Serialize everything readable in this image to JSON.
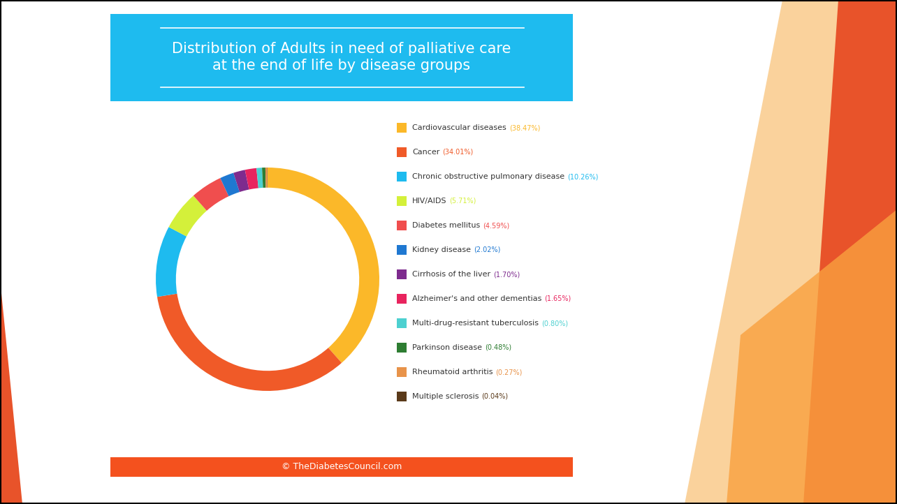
{
  "chart_data": {
    "type": "donut",
    "title": "Distribution of Adults in need of palliative care\nat the end of life by disease groups",
    "categories": [
      "Cardiovascular diseases",
      "Cancer",
      "Chronic obstructive pulmonary disease",
      "HIV/AIDS",
      "Diabetes mellitus",
      "Kidney disease",
      "Cirrhosis of the liver",
      "Alzheimer's and other dementias",
      "Multi-drug-resistant tuberculosis",
      "Parkinson disease",
      "Rheumatoid arthritis",
      "Multiple sclerosis"
    ],
    "values": [
      38.47,
      34.01,
      10.26,
      5.71,
      4.59,
      2.02,
      1.7,
      1.65,
      0.8,
      0.48,
      0.27,
      0.04
    ],
    "value_labels": [
      "(38.47%)",
      "(34.01%)",
      "(10.26%)",
      "(5.71%)",
      "(4.59%)",
      "(2.02%)",
      "(1.70%)",
      "(1.65%)",
      "(0.80%)",
      "(0.48%)",
      "(0.27%)",
      "(0.04%)"
    ],
    "colors": [
      "#FBB829",
      "#F05A28",
      "#1EBBEF",
      "#D4F03A",
      "#F04E4E",
      "#1F78D1",
      "#7E2B8E",
      "#E8245E",
      "#4DD0D0",
      "#2E7D32",
      "#E8934A",
      "#5A3A1A"
    ],
    "legend": "right",
    "annotations": [
      "© TheDiabetesCouncil.com"
    ]
  }
}
